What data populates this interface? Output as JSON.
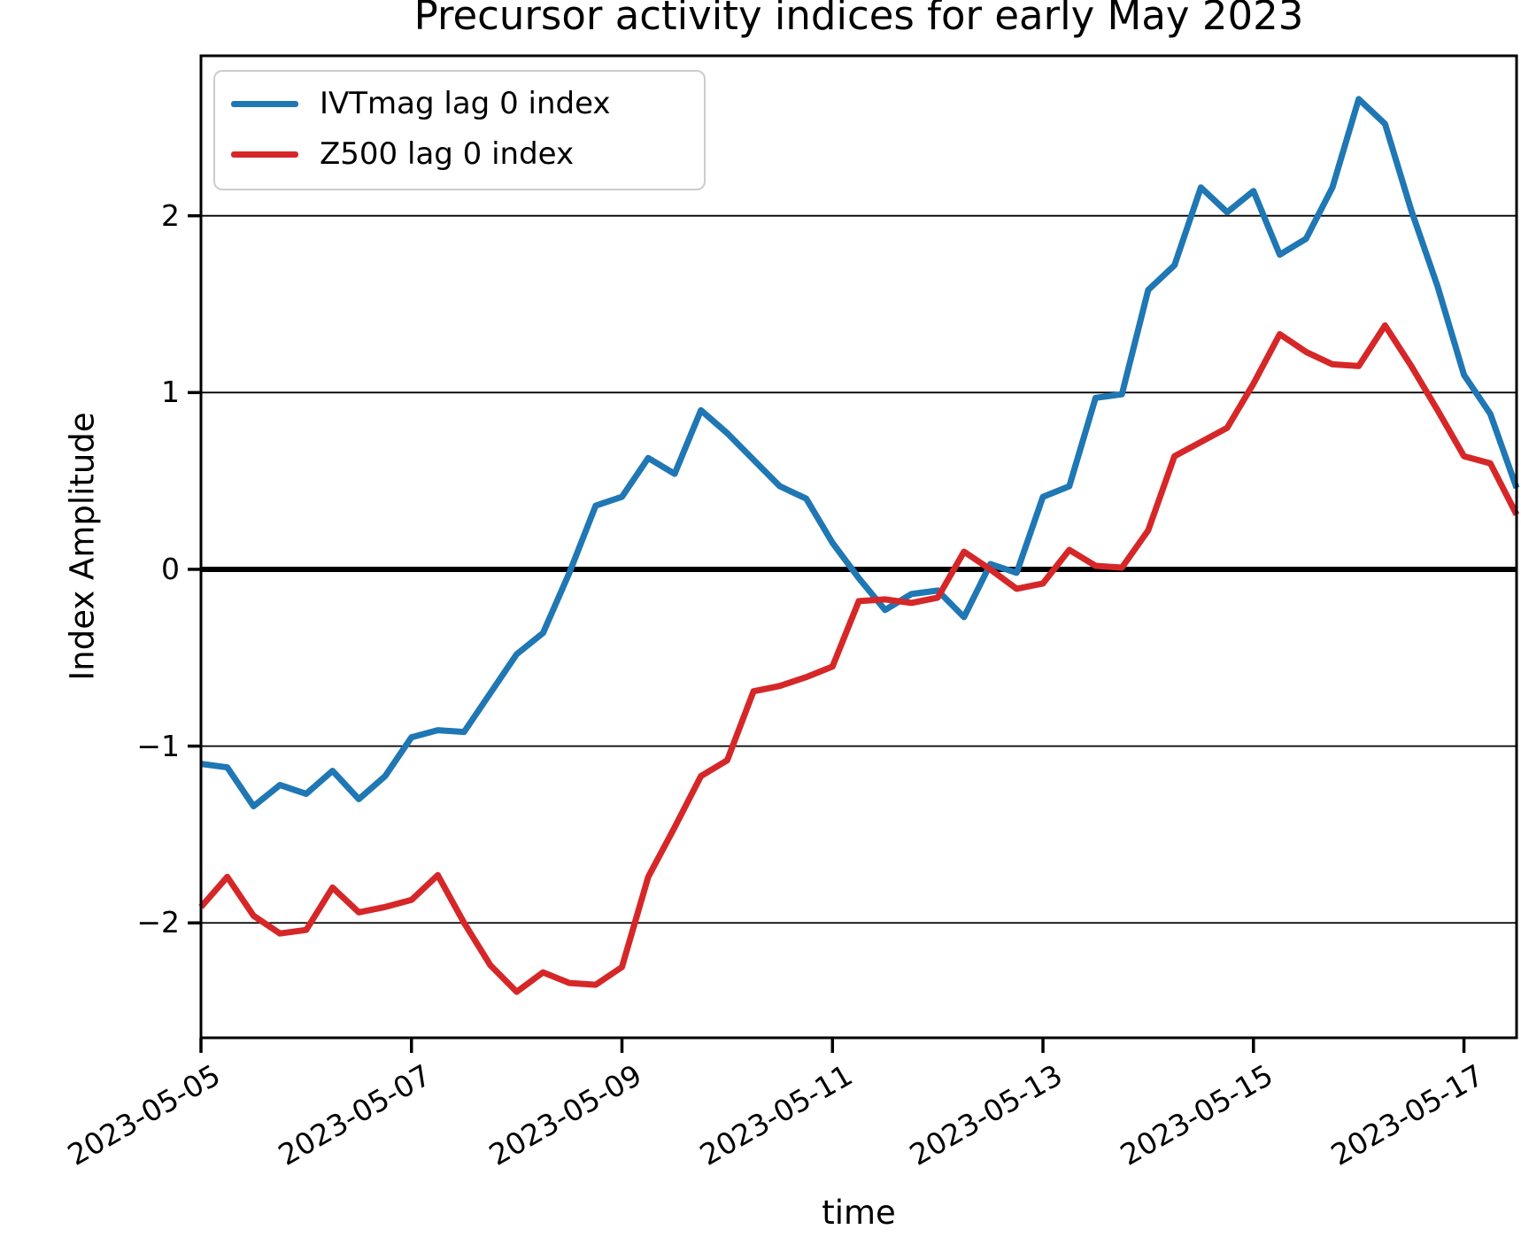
{
  "figure": {
    "title": "Precursor activity indices for early May 2023",
    "xlabel": "time",
    "ylabel": "Index Amplitude"
  },
  "legend": {
    "position": "upper left",
    "entries": [
      {
        "label": "IVTmag lag 0 index",
        "color": "#1f77b4"
      },
      {
        "label": "Z500 lag 0 index",
        "color": "#d62728"
      }
    ]
  },
  "chart_data": {
    "type": "line",
    "title": "Precursor activity indices for early May 2023",
    "xlabel": "time",
    "ylabel": "Index Amplitude",
    "x": {
      "start": "2023-05-05 00:00",
      "step_hours": 6,
      "count": 51,
      "end": "2023-05-17 12:00"
    },
    "xticks": {
      "labels": [
        "2023-05-05",
        "2023-05-07",
        "2023-05-09",
        "2023-05-11",
        "2023-05-13",
        "2023-05-15",
        "2023-05-17"
      ],
      "positions_steps": [
        0,
        8,
        16,
        24,
        32,
        40,
        48
      ],
      "rotation_deg": 30
    },
    "yticks": {
      "values": [
        -2,
        -1,
        0,
        1,
        2
      ],
      "labels": [
        "−2",
        "−1",
        "0",
        "1",
        "2"
      ]
    },
    "ylim": [
      -2.65,
      2.905
    ],
    "grid": "horizontal",
    "zero_line": true,
    "legend_position": "upper left",
    "series": [
      {
        "name": "IVTmag lag 0 index",
        "color": "#1f77b4",
        "values": [
          -1.1,
          -1.12,
          -1.34,
          -1.22,
          -1.27,
          -1.14,
          -1.3,
          -1.17,
          -0.95,
          -0.91,
          -0.92,
          -0.7,
          -0.48,
          -0.36,
          -0.02,
          0.36,
          0.41,
          0.63,
          0.54,
          0.9,
          0.77,
          0.62,
          0.47,
          0.4,
          0.15,
          -0.05,
          -0.23,
          -0.14,
          -0.12,
          -0.27,
          0.03,
          -0.02,
          0.41,
          0.47,
          0.97,
          0.99,
          1.58,
          1.72,
          2.16,
          2.02,
          2.14,
          1.78,
          1.87,
          2.16,
          2.66,
          2.52,
          2.03,
          1.6,
          1.1,
          0.88,
          0.46
        ]
      },
      {
        "name": "Z500 lag 0 index",
        "color": "#d62728",
        "values": [
          -1.91,
          -1.74,
          -1.96,
          -2.06,
          -2.04,
          -1.8,
          -1.94,
          -1.91,
          -1.87,
          -1.73,
          -2.0,
          -2.24,
          -2.39,
          -2.28,
          -2.34,
          -2.35,
          -2.25,
          -1.74,
          -1.46,
          -1.17,
          -1.08,
          -0.69,
          -0.66,
          -0.61,
          -0.55,
          -0.18,
          -0.17,
          -0.19,
          -0.16,
          0.1,
          0.0,
          -0.11,
          -0.08,
          0.11,
          0.02,
          0.01,
          0.22,
          0.64,
          0.72,
          0.8,
          1.05,
          1.33,
          1.23,
          1.16,
          1.15,
          1.38,
          1.15,
          0.9,
          0.64,
          0.6,
          0.31
        ]
      }
    ]
  }
}
